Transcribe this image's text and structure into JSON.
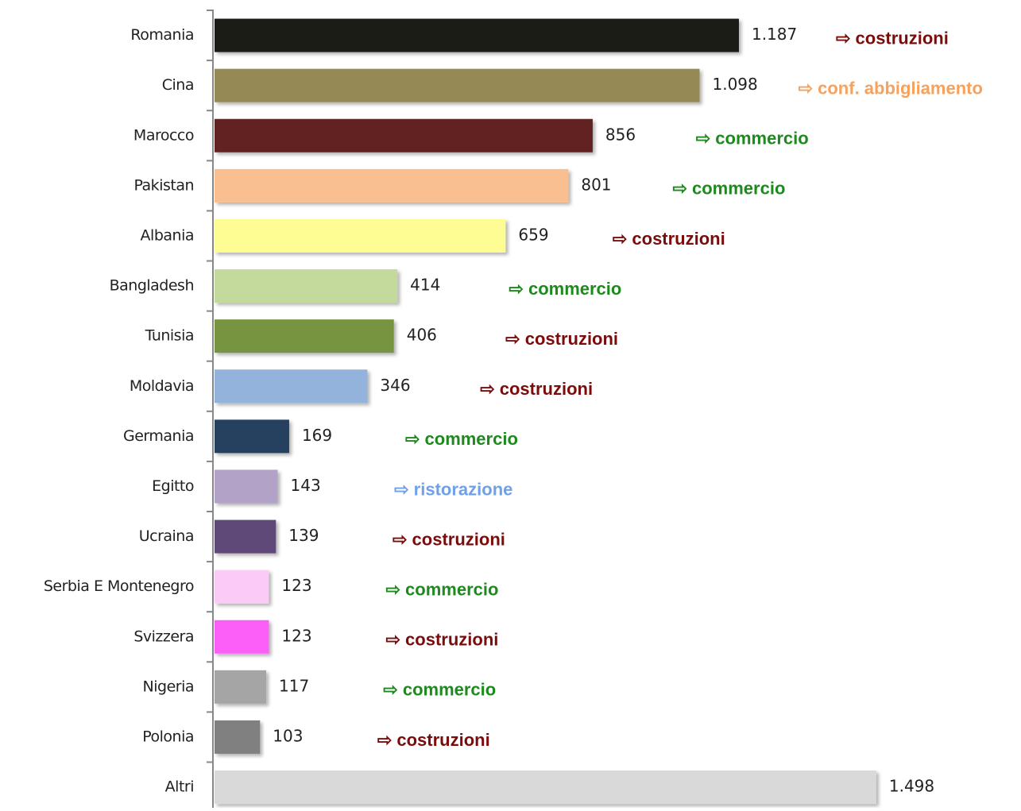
{
  "chart_data": {
    "type": "bar",
    "orientation": "horizontal",
    "categories": [
      "Romania",
      "Cina",
      "Marocco",
      "Pakistan",
      "Albania",
      "Bangladesh",
      "Tunisia",
      "Moldavia",
      "Germania",
      "Egitto",
      "Ucraina",
      "Serbia E Montenegro",
      "Svizzera",
      "Nigeria",
      "Polonia",
      "Altri"
    ],
    "values": [
      1187,
      1098,
      856,
      801,
      659,
      414,
      406,
      346,
      169,
      143,
      139,
      123,
      123,
      117,
      103,
      1498
    ],
    "value_labels": [
      "1.187",
      "1.098",
      "856",
      "801",
      "659",
      "414",
      "406",
      "346",
      "169",
      "143",
      "139",
      "123",
      "123",
      "117",
      "103",
      "1.498"
    ],
    "colors": [
      "#1f1a14",
      "#958a55",
      "#632322",
      "#f9bf90",
      "#fdfd93",
      "#c4d99c",
      "#779540",
      "#93b3dc",
      "#253f60",
      "#b3a2c8",
      "#5e4978",
      "#fbcbf6",
      "#fb5ff7",
      "#a5a5a5",
      "#808080",
      "#d9d9d9"
    ],
    "annotations": [
      "⇨ costruzioni",
      "⇨ conf. abbigliamento",
      "⇨ commercio",
      "⇨ commercio",
      "⇨ costruzioni",
      "⇨ commercio",
      "⇨ costruzioni",
      "⇨ costruzioni",
      "⇨ commercio",
      "⇨ ristorazione",
      "⇨ costruzioni",
      "⇨ commercio",
      "⇨ costruzioni",
      "⇨ commercio",
      "⇨ costruzioni",
      null
    ],
    "annotation_colors": [
      "#7b0c0c",
      "#f6a15c",
      "#1e8a1e",
      "#1e8a1e",
      "#7b0c0c",
      "#1e8a1e",
      "#7b0c0c",
      "#7b0c0c",
      "#1e8a1e",
      "#6fa0e8",
      "#7b0c0c",
      "#1e8a1e",
      "#7b0c0c",
      "#1e8a1e",
      "#7b0c0c",
      null
    ],
    "xlim": [
      0,
      1500
    ]
  }
}
